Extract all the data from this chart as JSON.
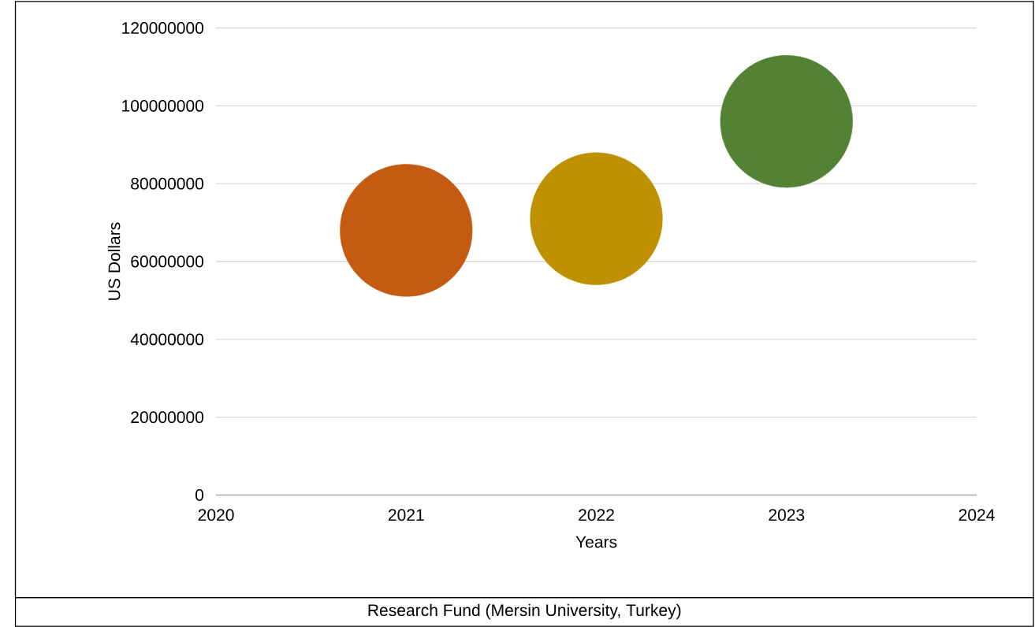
{
  "chart_data": {
    "type": "bubble",
    "xlabel": "Years",
    "ylabel": "US Dollars",
    "x": [
      2021,
      2022,
      2023
    ],
    "values": [
      68000000,
      71000000,
      96000000
    ],
    "sizes": [
      1,
      1,
      1
    ],
    "colors": [
      "#c55a11",
      "#bf9000",
      "#548235"
    ],
    "xlim": [
      2020,
      2024
    ],
    "xticks": [
      2020,
      2021,
      2022,
      2023,
      2024
    ],
    "ylim": [
      0,
      120000000
    ],
    "yticks": [
      0,
      20000000,
      40000000,
      60000000,
      80000000,
      100000000,
      120000000
    ],
    "grid": "y",
    "annotations": [
      "Research Fund (Mersin University, Turkey)"
    ]
  }
}
